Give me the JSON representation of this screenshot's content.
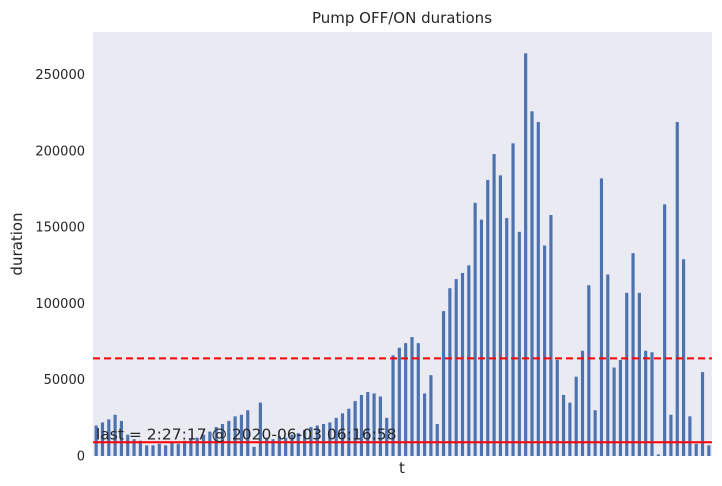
{
  "chart_data": {
    "type": "bar",
    "title": "Pump OFF/ON durations",
    "xlabel": "t",
    "ylabel": "duration",
    "ylim": [
      0,
      278000
    ],
    "yticks": [
      0,
      50000,
      100000,
      150000,
      200000,
      250000
    ],
    "grid": false,
    "bar_color": "#4c72b0",
    "background": "#eaeaf2",
    "values": [
      20000,
      22000,
      24000,
      27000,
      23000,
      14000,
      11000,
      10000,
      7000,
      7000,
      8000,
      7000,
      9000,
      8000,
      10000,
      11000,
      12000,
      14000,
      16000,
      19000,
      21000,
      23000,
      26000,
      27000,
      30000,
      6000,
      35000,
      12000,
      11000,
      13000,
      12000,
      14000,
      15000,
      17000,
      19000,
      20000,
      21000,
      22000,
      25000,
      28000,
      31000,
      36000,
      40000,
      42000,
      41000,
      39000,
      25000,
      66000,
      71000,
      74000,
      78000,
      74000,
      41000,
      53000,
      21000,
      95000,
      110000,
      116000,
      120000,
      125000,
      166000,
      155000,
      181000,
      198000,
      184000,
      156000,
      205000,
      147000,
      264000,
      226000,
      219000,
      138000,
      158000,
      63000,
      40000,
      35000,
      52000,
      69000,
      112000,
      30000,
      182000,
      119000,
      58000,
      63000,
      107000,
      133000,
      107000,
      69000,
      68000,
      1000,
      165000,
      27000,
      219000,
      129000,
      26000,
      8000,
      55000,
      7000
    ],
    "hlines": [
      {
        "y": 64000,
        "style": "dashed",
        "color": "#ff0000"
      },
      {
        "y": 9000,
        "style": "solid",
        "color": "#ff0000"
      }
    ],
    "annotation": {
      "text": "last = 2:27:17 @  2020-06-03 06:16:58",
      "x_index": 0,
      "y": 9000
    }
  }
}
